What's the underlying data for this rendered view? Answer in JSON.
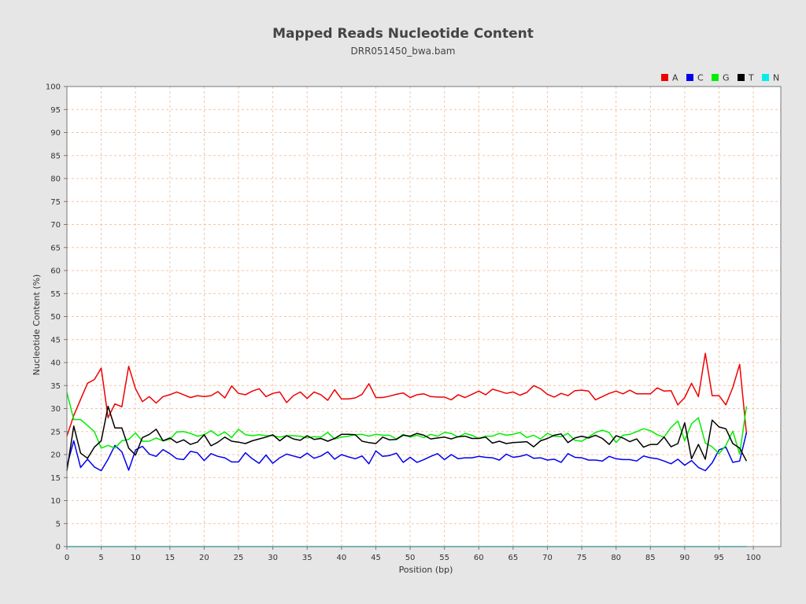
{
  "chart_data": {
    "type": "line",
    "title": "Mapped Reads Nucleotide Content",
    "subtitle": "DRR051450_bwa.bam",
    "xlabel": "Position (bp)",
    "ylabel": "Nucleotide Content (%)",
    "xlim": [
      0,
      104
    ],
    "ylim": [
      0,
      100
    ],
    "x_ticks": [
      0,
      5,
      10,
      15,
      20,
      25,
      30,
      35,
      40,
      45,
      50,
      55,
      60,
      65,
      70,
      75,
      80,
      85,
      90,
      95,
      100
    ],
    "y_ticks": [
      0,
      5,
      10,
      15,
      20,
      25,
      30,
      35,
      40,
      45,
      50,
      55,
      60,
      65,
      70,
      75,
      80,
      85,
      90,
      95,
      100
    ],
    "grid": true,
    "legend_position": "top-right",
    "x": [
      0,
      1,
      2,
      3,
      4,
      5,
      6,
      7,
      8,
      9,
      10,
      11,
      12,
      13,
      14,
      15,
      16,
      17,
      18,
      19,
      20,
      21,
      22,
      23,
      24,
      25,
      26,
      27,
      28,
      29,
      30,
      31,
      32,
      33,
      34,
      35,
      36,
      37,
      38,
      39,
      40,
      41,
      42,
      43,
      44,
      45,
      46,
      47,
      48,
      49,
      50,
      51,
      52,
      53,
      54,
      55,
      56,
      57,
      58,
      59,
      60,
      61,
      62,
      63,
      64,
      65,
      66,
      67,
      68,
      69,
      70,
      71,
      72,
      73,
      74,
      75,
      76,
      77,
      78,
      79,
      80,
      81,
      82,
      83,
      84,
      85,
      86,
      87,
      88,
      89,
      90,
      91,
      92,
      93,
      94,
      95,
      96,
      97,
      98,
      99
    ],
    "series": [
      {
        "name": "A",
        "color": "#ee0000",
        "values": [
          24.0,
          28.5,
          32.0,
          35.5,
          36.3,
          38.8,
          28.0,
          31.0,
          30.4,
          39.2,
          34.3,
          31.5,
          32.6,
          31.2,
          32.6,
          33.0,
          33.6,
          33.0,
          32.4,
          32.8,
          32.6,
          32.8,
          33.7,
          32.3,
          34.9,
          33.3,
          33.0,
          33.8,
          34.3,
          32.6,
          33.3,
          33.6,
          31.3,
          32.8,
          33.6,
          32.2,
          33.6,
          33.0,
          31.8,
          34.1,
          32.1,
          32.1,
          32.3,
          33.1,
          35.4,
          32.4,
          32.4,
          32.7,
          33.1,
          33.4,
          32.4,
          33.0,
          33.2,
          32.6,
          32.5,
          32.5,
          31.9,
          33.0,
          32.4,
          33.1,
          33.8,
          33.0,
          34.2,
          33.8,
          33.3,
          33.6,
          32.9,
          33.5,
          35.0,
          34.3,
          33.1,
          32.5,
          33.3,
          32.8,
          33.9,
          34.0,
          33.8,
          31.9,
          32.6,
          33.3,
          33.8,
          33.2,
          34.0,
          33.2,
          33.2,
          33.2,
          34.5,
          33.8,
          33.9,
          30.8,
          32.4,
          35.5,
          32.6,
          42.0,
          32.8,
          32.8,
          30.8,
          34.6,
          39.6,
          24.5
        ]
      },
      {
        "name": "C",
        "color": "#0000ee",
        "values": [
          17.5,
          23.0,
          17.2,
          19.0,
          17.3,
          16.5,
          19.0,
          22.0,
          20.6,
          16.6,
          21.0,
          21.8,
          20.1,
          19.6,
          21.1,
          20.2,
          19.1,
          18.9,
          20.7,
          20.4,
          18.7,
          20.2,
          19.6,
          19.3,
          18.4,
          18.4,
          20.4,
          19.1,
          18.1,
          19.9,
          18.1,
          19.3,
          20.1,
          19.7,
          19.3,
          20.3,
          19.2,
          19.7,
          20.6,
          19.0,
          20.0,
          19.5,
          19.1,
          19.7,
          18.0,
          20.8,
          19.6,
          19.8,
          20.3,
          18.3,
          19.4,
          18.3,
          18.9,
          19.6,
          20.2,
          18.9,
          20.0,
          19.1,
          19.3,
          19.3,
          19.6,
          19.4,
          19.3,
          18.8,
          20.1,
          19.4,
          19.6,
          20.0,
          19.2,
          19.3,
          18.8,
          19.0,
          18.3,
          20.2,
          19.4,
          19.3,
          18.8,
          18.8,
          18.6,
          19.6,
          19.1,
          18.9,
          18.9,
          18.6,
          19.7,
          19.3,
          19.1,
          18.6,
          18.0,
          19.0,
          17.7,
          18.7,
          17.2,
          16.5,
          18.2,
          21.0,
          21.6,
          18.3,
          18.6,
          24.8
        ]
      },
      {
        "name": "G",
        "color": "#00ee00",
        "values": [
          33.5,
          27.6,
          27.6,
          26.3,
          25.0,
          21.4,
          22.0,
          21.4,
          23.0,
          23.3,
          24.7,
          22.9,
          22.9,
          23.6,
          23.0,
          23.3,
          24.9,
          25.0,
          24.6,
          24.0,
          24.3,
          25.2,
          24.1,
          24.9,
          23.7,
          25.5,
          24.3,
          24.1,
          24.3,
          24.1,
          24.1,
          23.8,
          24.1,
          24.1,
          24.0,
          23.6,
          23.9,
          23.8,
          24.8,
          23.4,
          23.8,
          24.0,
          24.3,
          24.4,
          24.0,
          24.4,
          24.2,
          24.2,
          23.4,
          24.4,
          23.8,
          24.2,
          23.7,
          24.4,
          24.0,
          24.8,
          24.6,
          23.8,
          24.6,
          24.2,
          23.5,
          24.0,
          24.0,
          24.6,
          24.2,
          24.4,
          24.8,
          23.7,
          24.2,
          23.4,
          24.6,
          24.0,
          23.9,
          24.6,
          23.1,
          22.9,
          23.8,
          24.8,
          25.3,
          24.8,
          22.6,
          24.2,
          24.4,
          25.0,
          25.6,
          25.2,
          24.3,
          23.8,
          25.9,
          27.3,
          23.0,
          26.7,
          28.0,
          22.5,
          21.7,
          20.2,
          22.0,
          25.1,
          20.1,
          30.5
        ]
      },
      {
        "name": "T",
        "color": "#000000",
        "values": [
          16.5,
          26.2,
          20.3,
          19.2,
          21.6,
          23.0,
          30.5,
          25.8,
          25.8,
          21.4,
          19.9,
          23.7,
          24.4,
          25.5,
          23.0,
          23.6,
          22.6,
          23.2,
          22.2,
          22.7,
          24.3,
          21.9,
          22.7,
          23.8,
          22.9,
          22.7,
          22.4,
          23.0,
          23.4,
          23.8,
          24.3,
          23.0,
          24.1,
          23.4,
          23.1,
          24.1,
          23.3,
          23.5,
          22.9,
          23.5,
          24.4,
          24.4,
          24.3,
          22.9,
          22.6,
          22.4,
          23.8,
          23.2,
          23.3,
          24.2,
          24.0,
          24.6,
          24.2,
          23.4,
          23.6,
          23.8,
          23.4,
          23.9,
          24.0,
          23.5,
          23.5,
          23.8,
          22.5,
          22.9,
          22.4,
          22.6,
          22.7,
          22.8,
          21.7,
          23.0,
          23.5,
          24.2,
          24.5,
          22.6,
          23.6,
          24.0,
          23.6,
          24.2,
          23.5,
          22.2,
          24.1,
          23.6,
          22.8,
          23.4,
          21.6,
          22.2,
          22.2,
          23.8,
          21.7,
          22.4,
          26.9,
          19.1,
          22.2,
          19.0,
          27.5,
          26.0,
          25.6,
          22.4,
          21.4,
          18.6
        ]
      },
      {
        "name": "N",
        "color": "#00eeee",
        "values": [
          0.0,
          0.0,
          0.0,
          0.0,
          0.0,
          0.0,
          0.0,
          0.0,
          0.0,
          0.0,
          0.0,
          0.0,
          0.0,
          0.0,
          0.0,
          0.0,
          0.0,
          0.0,
          0.0,
          0.0,
          0.0,
          0.0,
          0.0,
          0.0,
          0.0,
          0.0,
          0.0,
          0.0,
          0.0,
          0.0,
          0.0,
          0.0,
          0.0,
          0.0,
          0.0,
          0.0,
          0.0,
          0.0,
          0.0,
          0.0,
          0.0,
          0.0,
          0.0,
          0.0,
          0.0,
          0.0,
          0.0,
          0.0,
          0.0,
          0.0,
          0.0,
          0.0,
          0.0,
          0.0,
          0.0,
          0.0,
          0.0,
          0.0,
          0.0,
          0.0,
          0.0,
          0.0,
          0.0,
          0.0,
          0.0,
          0.0,
          0.0,
          0.0,
          0.0,
          0.0,
          0.0,
          0.0,
          0.0,
          0.0,
          0.0,
          0.0,
          0.0,
          0.0,
          0.0,
          0.0,
          0.0,
          0.0,
          0.0,
          0.0,
          0.0,
          0.0,
          0.0,
          0.0,
          0.0,
          0.0,
          0.0,
          0.0,
          0.0,
          0.0,
          0.0,
          0.0,
          0.0,
          0.0,
          0.0,
          0.0
        ]
      }
    ]
  }
}
